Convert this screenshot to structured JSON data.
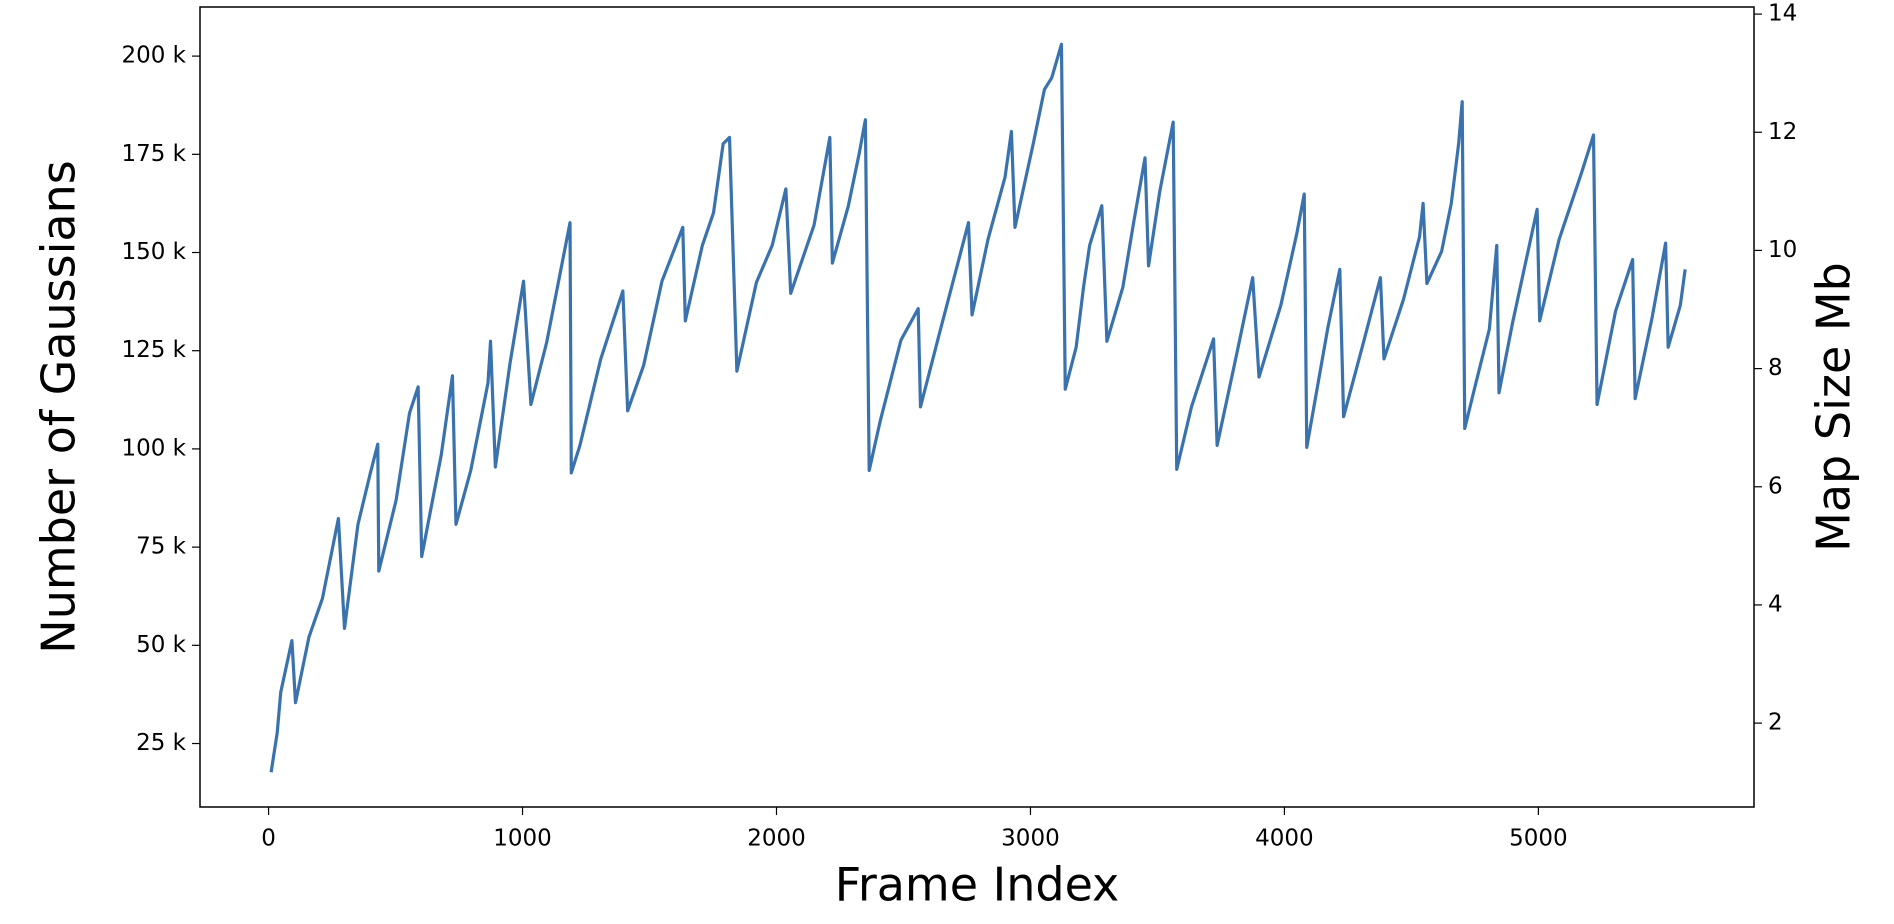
{
  "chart_data": {
    "type": "line",
    "xlabel": "Frame Index",
    "ylabel": "Number of Gaussians",
    "y2label": "Map Size Mb",
    "color": "#3a72ad",
    "xlim": [
      -270,
      5849
    ],
    "xticks": [
      0,
      1000,
      2000,
      3000,
      4000,
      5000
    ],
    "ylim": [
      8840,
      212500
    ],
    "yticks": [
      {
        "value": 25000,
        "label": "25 k"
      },
      {
        "value": 50000,
        "label": "50 k"
      },
      {
        "value": 75000,
        "label": "75 k"
      },
      {
        "value": 100000,
        "label": "100 k"
      },
      {
        "value": 125000,
        "label": "125 k"
      },
      {
        "value": 150000,
        "label": "150 k"
      },
      {
        "value": 175000,
        "label": "175 k"
      },
      {
        "value": 200000,
        "label": "200 k"
      }
    ],
    "y2lim": [
      0.58,
      14.12
    ],
    "y2ticks": [
      2,
      4,
      6,
      8,
      10,
      12,
      14
    ],
    "x": [
      10,
      34,
      48,
      92,
      106,
      159,
      212,
      275,
      299,
      352,
      401,
      430,
      434,
      502,
      555,
      589,
      603,
      680,
      724,
      738,
      796,
      864,
      874,
      893,
      951,
      1004,
      1033,
      1095,
      1187,
      1192,
      1226,
      1308,
      1395,
      1414,
      1477,
      1549,
      1631,
      1641,
      1708,
      1752,
      1790,
      1815,
      1844,
      1921,
      1983,
      2037,
      2056,
      2148,
      2210,
      2220,
      2283,
      2326,
      2350,
      2365,
      2408,
      2490,
      2558,
      2567,
      2640,
      2683,
      2756,
      2770,
      2833,
      2900,
      2925,
      2939,
      3011,
      3055,
      3084,
      3122,
      3137,
      3180,
      3209,
      3233,
      3281,
      3301,
      3364,
      3407,
      3451,
      3465,
      3509,
      3562,
      3576,
      3634,
      3721,
      3735,
      3808,
      3875,
      3900,
      3986,
      4049,
      4078,
      4088,
      4170,
      4218,
      4233,
      4310,
      4378,
      4392,
      4469,
      4532,
      4546,
      4561,
      4619,
      4657,
      4686,
      4700,
      4710,
      4754,
      4807,
      4836,
      4845,
      4898,
      4995,
      5005,
      5082,
      5169,
      5217,
      5231,
      5304,
      5371,
      5381,
      5448,
      5501,
      5511,
      5559,
      5578
    ],
    "values": [
      17700,
      27700,
      38100,
      51200,
      35400,
      52100,
      61900,
      82300,
      54300,
      80800,
      93900,
      101200,
      68900,
      86900,
      109100,
      115800,
      72600,
      98500,
      118600,
      80800,
      94500,
      116800,
      127400,
      95400,
      121900,
      142700,
      111300,
      127100,
      157600,
      93900,
      100900,
      122900,
      140200,
      109700,
      121300,
      142700,
      156400,
      132600,
      151800,
      160100,
      177700,
      179300,
      119800,
      142400,
      151800,
      166200,
      139600,
      157000,
      179300,
      147300,
      161900,
      175300,
      183800,
      94500,
      107000,
      127700,
      135700,
      110700,
      129000,
      139600,
      157600,
      134100,
      153400,
      169200,
      180800,
      156400,
      177700,
      191500,
      194500,
      203000,
      115200,
      125900,
      141200,
      151800,
      161900,
      127400,
      141200,
      157900,
      174100,
      146600,
      165500,
      183200,
      94800,
      110700,
      128000,
      100900,
      122900,
      143600,
      118300,
      136600,
      154900,
      164900,
      100400,
      130500,
      145700,
      108200,
      126800,
      143600,
      122900,
      138100,
      154000,
      162500,
      142100,
      150300,
      162500,
      177700,
      188400,
      105200,
      116800,
      130500,
      151800,
      114300,
      132000,
      161000,
      132600,
      153400,
      170100,
      179900,
      111300,
      135100,
      148200,
      112800,
      133500,
      152400,
      125900,
      136600,
      145700
    ]
  }
}
